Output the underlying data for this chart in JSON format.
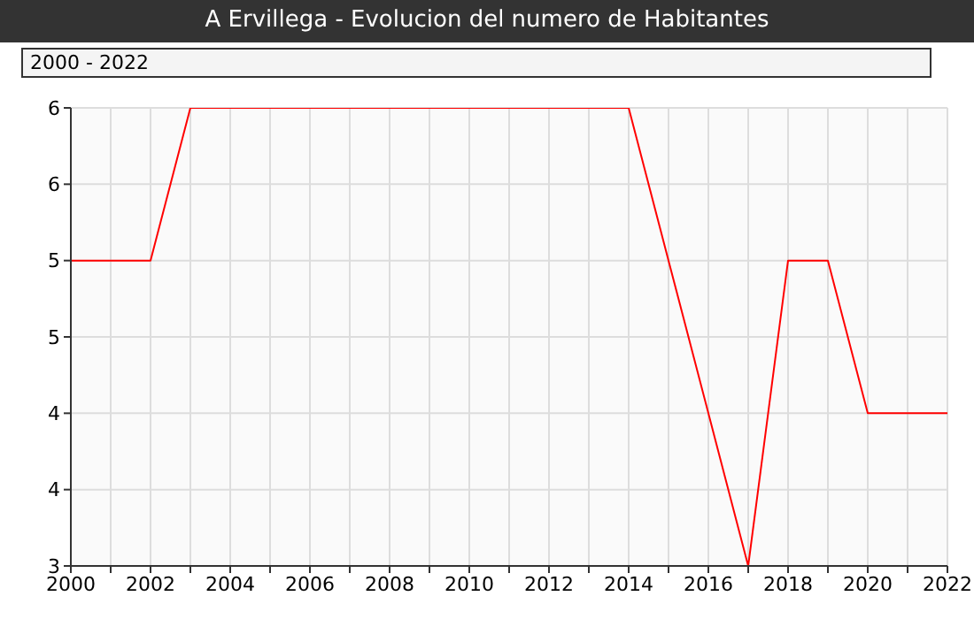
{
  "chart_data": {
    "type": "line",
    "title": "A Ervillega - Evolucion del numero de Habitantes",
    "annotations": [
      "2000 - 2022"
    ],
    "x": [
      2000,
      2001,
      2002,
      2003,
      2004,
      2005,
      2006,
      2007,
      2008,
      2009,
      2010,
      2011,
      2012,
      2013,
      2014,
      2015,
      2016,
      2017,
      2018,
      2019,
      2020,
      2021,
      2022
    ],
    "series": [
      {
        "color": "#ff0000",
        "values": [
          5,
          5,
          5,
          6,
          6,
          6,
          6,
          6,
          6,
          6,
          6,
          6,
          6,
          6,
          6,
          5,
          4,
          3,
          5,
          5,
          4,
          4,
          4
        ]
      }
    ],
    "xlim": [
      2000,
      2022
    ],
    "xticks": [
      2000,
      {
        "value": 2001,
        "label": null
      },
      2002,
      {
        "value": 2003,
        "label": null
      },
      2004,
      {
        "value": 2005,
        "label": null
      },
      2006,
      {
        "value": 2007,
        "label": null
      },
      2008,
      {
        "value": 2009,
        "label": null
      },
      2010,
      {
        "value": 2011,
        "label": null
      },
      2012,
      {
        "value": 2013,
        "label": null
      },
      2014,
      {
        "value": 2015,
        "label": null
      },
      2016,
      {
        "value": 2017,
        "label": null
      },
      2018,
      {
        "value": 2019,
        "label": null
      },
      2020,
      {
        "value": 2021,
        "label": null
      },
      2022
    ],
    "ylim": [
      3,
      6
    ],
    "yticks": [
      3,
      {
        "value": 3.5,
        "label": "4"
      },
      4,
      {
        "value": 4.5,
        "label": "5"
      },
      5,
      {
        "value": 5.5,
        "label": "6"
      },
      6
    ],
    "grid": true
  }
}
